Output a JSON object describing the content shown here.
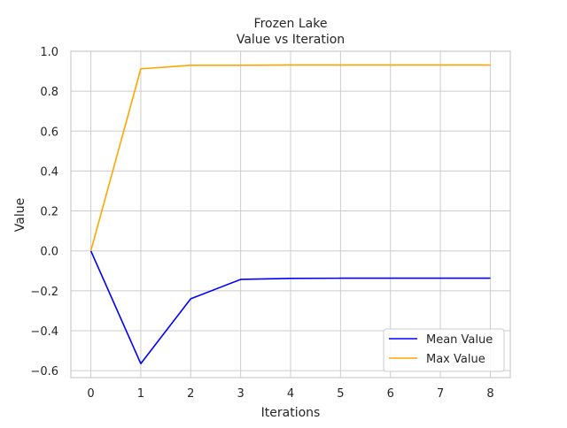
{
  "chart_data": {
    "type": "line",
    "title": "Frozen Lake",
    "subtitle": "Value vs Iteration",
    "xlabel": "Iterations",
    "ylabel": "Value",
    "x": [
      0,
      1,
      2,
      3,
      4,
      5,
      6,
      7,
      8
    ],
    "x_ticks": [
      "0",
      "1",
      "2",
      "3",
      "4",
      "5",
      "6",
      "7",
      "8"
    ],
    "y_ticks": [
      "−0.6",
      "−0.4",
      "−0.2",
      "0.0",
      "0.2",
      "0.4",
      "0.6",
      "0.8",
      "1.0"
    ],
    "y_tick_values": [
      -0.6,
      -0.4,
      -0.2,
      0.0,
      0.2,
      0.4,
      0.6,
      0.8,
      1.0
    ],
    "xlim": [
      -0.4,
      8.4
    ],
    "ylim": [
      -0.635,
      1.0
    ],
    "grid": true,
    "legend_position": "bottom-right",
    "series": [
      {
        "name": "Mean Value",
        "color": "#0000ff",
        "values": [
          0.0,
          -0.565,
          -0.24,
          -0.143,
          -0.138,
          -0.137,
          -0.137,
          -0.137,
          -0.137
        ]
      },
      {
        "name": "Max Value",
        "color": "#ffa500",
        "values": [
          0.0,
          0.912,
          0.93,
          0.93,
          0.931,
          0.931,
          0.931,
          0.931,
          0.931
        ]
      }
    ]
  }
}
